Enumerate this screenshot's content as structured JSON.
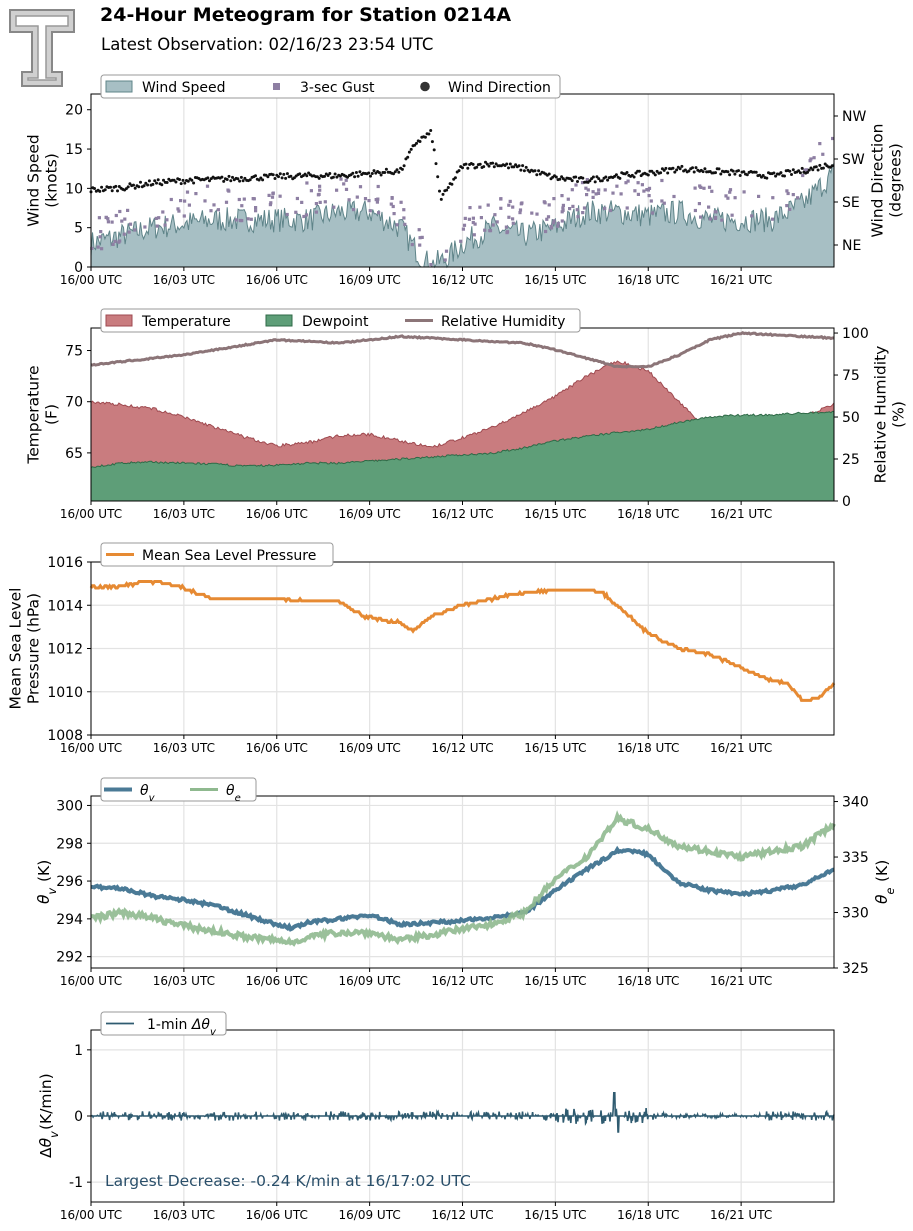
{
  "header": {
    "title": "24-Hour Meteogram for Station 0214A",
    "subtitle": "Latest Observation: 02/16/23 23:54 UTC",
    "logo_icon": "texas-tech-double-t-logo-icon"
  },
  "x_ticks": [
    "16/00 UTC",
    "16/03 UTC",
    "16/06 UTC",
    "16/09 UTC",
    "16/12 UTC",
    "16/15 UTC",
    "16/18 UTC",
    "16/21 UTC"
  ],
  "colors": {
    "wind_speed": "#a7bfc4",
    "wind_speed_line": "#5f8489",
    "gust": "#8e7fa3",
    "direction": "#111111",
    "temperature": "#c97c7f",
    "temperature_line": "#9f4a50",
    "dewpoint": "#5e9e78",
    "dewpoint_line": "#2f6a47",
    "rh": "#8c7578",
    "pressure": "#e68a33",
    "theta_v": "#4a7a96",
    "theta_e": "#8fb98f",
    "dtheta": "#2f5b70",
    "annotation": "#2a4f6a"
  },
  "chart_data": [
    {
      "type": "area",
      "name": "wind",
      "legend": [
        "Wind Speed",
        "3-sec Gust",
        "Wind Direction"
      ],
      "legend_placement": "top-left",
      "ylabel": "Wind Speed\n(knots)",
      "y2label": "Wind Direction\n(degrees)",
      "ylim": [
        0,
        22
      ],
      "yticks": [
        0,
        5,
        10,
        15,
        20
      ],
      "y2ticks": [
        "NE",
        "SE",
        "SW",
        "NW"
      ],
      "xlim_hours": [
        0,
        24
      ],
      "grid": true,
      "series": [
        {
          "name": "Wind Speed",
          "x_hours": [
            0,
            1,
            2,
            3,
            4,
            5,
            6,
            7,
            8,
            9,
            10,
            10.7,
            11,
            11.5,
            12,
            13,
            14,
            15,
            16,
            17,
            18,
            19,
            20,
            21,
            22,
            23,
            23.5,
            24
          ],
          "values": [
            3,
            4,
            5,
            5.5,
            6,
            6,
            6,
            6,
            7,
            7,
            5,
            1,
            0.3,
            1,
            3,
            5,
            4,
            5,
            7,
            7,
            6.5,
            7,
            6,
            6,
            6,
            8,
            10,
            12
          ]
        },
        {
          "name": "3-sec Gust",
          "x_hours": [
            0,
            1,
            2,
            3,
            4,
            5,
            6,
            7,
            8,
            9,
            10,
            10.7,
            11,
            11.5,
            12,
            13,
            14,
            15,
            16,
            17,
            18,
            19,
            20,
            21,
            22,
            23,
            23.5,
            24
          ],
          "values": [
            4,
            5,
            7,
            8,
            8.5,
            8,
            8.5,
            8.5,
            9,
            9,
            7,
            3,
            1,
            2,
            5,
            7,
            6,
            7,
            9,
            9,
            9,
            9,
            8,
            8,
            8,
            10,
            14,
            16
          ]
        },
        {
          "name": "Wind Direction",
          "unit": "degrees",
          "x_hours": [
            0,
            1,
            2,
            3,
            4,
            5,
            6,
            7,
            8,
            9,
            10,
            10.5,
            11,
            11.3,
            12,
            13,
            14,
            15,
            16,
            17,
            18,
            19,
            20,
            21,
            22,
            23,
            24
          ],
          "values": [
            160,
            165,
            175,
            180,
            182,
            185,
            188,
            190,
            190,
            195,
            200,
            260,
            280,
            140,
            210,
            215,
            205,
            185,
            180,
            190,
            195,
            205,
            200,
            195,
            190,
            200,
            215
          ]
        }
      ]
    },
    {
      "type": "area",
      "name": "temperature",
      "legend": [
        "Temperature",
        "Dewpoint",
        "Relative Humidity"
      ],
      "legend_placement": "top-left",
      "ylabel": "Temperature\n(F)",
      "y2label": "Relative Humidity\n(%)",
      "ylim": [
        60.3,
        77.2
      ],
      "yticks": [
        65,
        70,
        75
      ],
      "y2lim": [
        0,
        103
      ],
      "y2ticks": [
        0,
        25,
        50,
        75,
        100
      ],
      "xlim_hours": [
        0,
        24
      ],
      "grid": true,
      "series": [
        {
          "name": "Temperature",
          "x_hours": [
            0,
            1,
            2,
            3,
            4,
            5,
            6,
            7,
            8,
            9,
            10,
            11,
            12,
            13,
            14,
            15,
            16,
            17,
            18,
            19,
            20,
            21,
            22,
            23,
            24
          ],
          "values": [
            70,
            69.7,
            69.3,
            68.5,
            67.5,
            66.5,
            65.7,
            66,
            66.7,
            66.8,
            66.2,
            65.5,
            66.5,
            67.5,
            69,
            70.5,
            72.5,
            74,
            73,
            70,
            67,
            66.7,
            67,
            68.5,
            69.8
          ]
        },
        {
          "name": "Dewpoint",
          "x_hours": [
            0,
            1,
            2,
            3,
            4,
            5,
            6,
            7,
            8,
            9,
            10,
            11,
            12,
            13,
            14,
            15,
            16,
            17,
            18,
            19,
            20,
            21,
            22,
            23,
            24
          ],
          "values": [
            63.6,
            64,
            64.1,
            64,
            63.9,
            63.7,
            63.8,
            64,
            64,
            64.2,
            64.4,
            64.6,
            64.8,
            65,
            65.5,
            66.2,
            66.6,
            67,
            67.3,
            68,
            68.5,
            68.7,
            68.7,
            68.9,
            69
          ]
        },
        {
          "name": "Relative Humidity",
          "x_hours": [
            0,
            1,
            2,
            3,
            4,
            5,
            6,
            7,
            8,
            9,
            10,
            11,
            12,
            13,
            14,
            15,
            16,
            17,
            18,
            19,
            20,
            21,
            22,
            23,
            24
          ],
          "values": [
            81,
            83,
            85,
            87,
            90,
            93,
            96,
            95,
            94,
            96,
            98,
            97,
            96,
            95,
            94,
            90,
            85,
            80,
            80,
            87,
            96,
            100,
            99,
            98,
            97
          ]
        }
      ]
    },
    {
      "type": "line",
      "name": "pressure",
      "legend": [
        "Mean Sea Level Pressure"
      ],
      "legend_placement": "top-left",
      "ylabel": "Mean Sea Level\nPressure (hPa)",
      "ylim": [
        1008,
        1016
      ],
      "yticks": [
        1008,
        1010,
        1012,
        1014,
        1016
      ],
      "xlim_hours": [
        0,
        24
      ],
      "grid": true,
      "series": [
        {
          "name": "Mean Sea Level Pressure",
          "x_hours": [
            0,
            1,
            1.8,
            2.5,
            3,
            3.5,
            4,
            5,
            6,
            7,
            8,
            8.8,
            9.5,
            10,
            10.4,
            11,
            12,
            13,
            14,
            15,
            16,
            16.5,
            17,
            18,
            19,
            20,
            20.7,
            21.3,
            22,
            22.5,
            23,
            23.5,
            24
          ],
          "values": [
            1014.8,
            1014.9,
            1015.1,
            1015.0,
            1014.8,
            1014.5,
            1014.3,
            1014.3,
            1014.3,
            1014.2,
            1014.2,
            1013.5,
            1013.3,
            1013.2,
            1012.8,
            1013.5,
            1014.0,
            1014.3,
            1014.6,
            1014.7,
            1014.7,
            1014.6,
            1014.0,
            1012.7,
            1012.0,
            1011.7,
            1011.3,
            1010.9,
            1010.5,
            1010.4,
            1009.6,
            1009.7,
            1010.4
          ]
        }
      ]
    },
    {
      "type": "line",
      "name": "theta",
      "legend": [
        "θv",
        "θe"
      ],
      "legend_placement": "top-left",
      "ylabel": "θv (K)",
      "y2label": "θe (K)",
      "ylim": [
        291.4,
        300.5
      ],
      "yticks": [
        292,
        294,
        296,
        298,
        300
      ],
      "y2lim": [
        325,
        340.5
      ],
      "y2ticks": [
        325,
        330,
        335,
        340
      ],
      "xlim_hours": [
        0,
        24
      ],
      "grid": true,
      "series": [
        {
          "name": "θv",
          "unit": "K",
          "x_hours": [
            0,
            1,
            2,
            3,
            4,
            5,
            6,
            6.5,
            7,
            8,
            9,
            10,
            11,
            12,
            13,
            14,
            15,
            16,
            17,
            17.5,
            18,
            19,
            20,
            21,
            22,
            23,
            24
          ],
          "values": [
            295.7,
            295.6,
            295.2,
            295.0,
            294.7,
            294.2,
            293.7,
            293.5,
            293.8,
            294.0,
            294.2,
            293.7,
            293.8,
            293.9,
            294.1,
            294.3,
            295.5,
            296.6,
            297.6,
            297.6,
            297.4,
            295.9,
            295.5,
            295.3,
            295.5,
            295.8,
            296.6
          ]
        },
        {
          "name": "θe",
          "unit": "K",
          "x_hours": [
            0,
            1,
            2,
            3,
            4,
            5,
            6,
            6.5,
            7,
            8,
            9,
            10,
            11,
            12,
            13,
            14,
            15,
            16,
            17,
            17.5,
            18,
            19,
            20,
            21,
            22,
            23,
            24
          ],
          "values": [
            329.5,
            330.0,
            329.5,
            328.8,
            328.3,
            327.8,
            327.5,
            327.3,
            327.8,
            328.2,
            328.2,
            327.5,
            328.0,
            328.5,
            329.0,
            330.0,
            333.0,
            335.0,
            338.5,
            338.0,
            337.5,
            336.0,
            335.5,
            335.0,
            335.5,
            336.0,
            338.0
          ]
        }
      ]
    },
    {
      "type": "line",
      "name": "dtheta",
      "legend": [
        "1-min Δθv"
      ],
      "legend_placement": "top-left",
      "ylabel": "Δθv (K/min)",
      "ylim": [
        -1.3,
        1.3
      ],
      "yticks": [
        -1,
        0,
        1
      ],
      "xlim_hours": [
        0,
        24
      ],
      "grid": true,
      "annotation": "Largest Decrease: -0.24 K/min at 16/17:02 UTC",
      "series": [
        {
          "name": "1-min Δθv",
          "unit": "K/min",
          "x_hours": [
            0,
            5.3,
            15,
            16.5,
            16.9,
            17.03,
            17.5,
            24
          ],
          "values": [
            0,
            0.2,
            0.15,
            0.2,
            0.35,
            -0.24,
            0.15,
            0
          ]
        }
      ]
    }
  ]
}
